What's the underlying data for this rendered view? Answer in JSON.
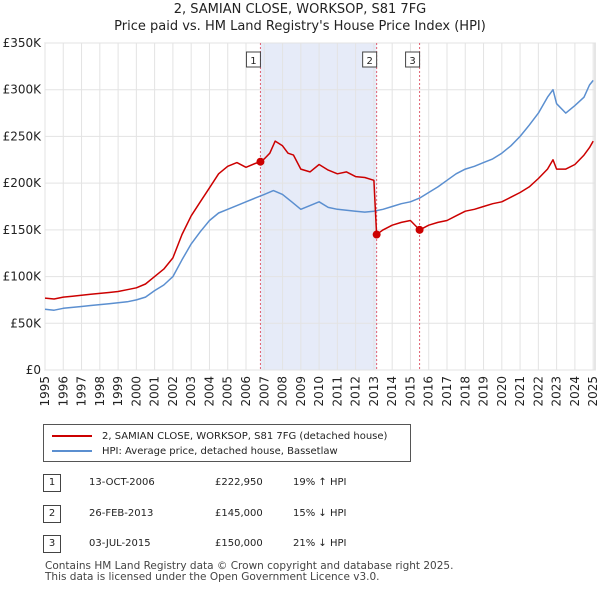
{
  "chart_data": {
    "type": "line",
    "title": "2, SAMIAN CLOSE, WORKSOP, S81 7FG",
    "subtitle": "Price paid vs. HM Land Registry's House Price Index (HPI)",
    "xlim": [
      1995,
      2025.1
    ],
    "ylim": [
      0,
      350000
    ],
    "y_ticks": [
      0,
      50000,
      100000,
      150000,
      200000,
      250000,
      300000,
      350000
    ],
    "y_tick_labels": [
      "£0",
      "£50K",
      "£100K",
      "£150K",
      "£200K",
      "£250K",
      "£300K",
      "£350K"
    ],
    "x_tick_labels": [
      "1995",
      "1996",
      "1997",
      "1998",
      "1999",
      "2000",
      "2001",
      "2002",
      "2003",
      "2004",
      "2005",
      "2006",
      "2007",
      "2008",
      "2009",
      "2010",
      "2011",
      "2012",
      "2013",
      "2014",
      "2015",
      "2016",
      "2017",
      "2018",
      "2019",
      "2020",
      "2021",
      "2022",
      "2023",
      "2024",
      "2025"
    ],
    "series": [
      {
        "name": "2, SAMIAN CLOSE, WORKSOP, S81 7FG (detached house)",
        "color": "#cc0000",
        "x": [
          1995.0,
          1995.5,
          1996.0,
          1996.5,
          1997.0,
          1997.5,
          1998.0,
          1998.5,
          1999.0,
          1999.5,
          2000.0,
          2000.5,
          2001.0,
          2001.5,
          2002.0,
          2002.5,
          2003.0,
          2003.5,
          2004.0,
          2004.5,
          2005.0,
          2005.5,
          2006.0,
          2006.5,
          2006.79,
          2007.0,
          2007.3,
          2007.6,
          2008.0,
          2008.3,
          2008.6,
          2009.0,
          2009.5,
          2010.0,
          2010.5,
          2011.0,
          2011.5,
          2012.0,
          2012.5,
          2013.0,
          2013.15,
          2013.5,
          2014.0,
          2014.5,
          2015.0,
          2015.5,
          2016.0,
          2016.5,
          2017.0,
          2017.5,
          2018.0,
          2018.5,
          2019.0,
          2019.5,
          2020.0,
          2020.5,
          2021.0,
          2021.5,
          2022.0,
          2022.5,
          2022.8,
          2023.0,
          2023.5,
          2024.0,
          2024.5,
          2024.8,
          2025.0
        ],
        "y": [
          77000,
          76000,
          78000,
          79000,
          80000,
          81000,
          82000,
          83000,
          84000,
          86000,
          88000,
          92000,
          100000,
          108000,
          120000,
          145000,
          165000,
          180000,
          195000,
          210000,
          218000,
          222000,
          217000,
          221000,
          222950,
          226000,
          232000,
          245000,
          240000,
          232000,
          230000,
          215000,
          212000,
          220000,
          214000,
          210000,
          212000,
          207000,
          206000,
          203000,
          145000,
          150000,
          155000,
          158000,
          160000,
          150000,
          155000,
          158000,
          160000,
          165000,
          170000,
          172000,
          175000,
          178000,
          180000,
          185000,
          190000,
          196000,
          205000,
          215000,
          225000,
          215000,
          215000,
          220000,
          230000,
          238000,
          245000
        ]
      },
      {
        "name": "HPI: Average price, detached house, Bassetlaw",
        "color": "#5b8fd0",
        "x": [
          1995.0,
          1995.5,
          1996.0,
          1996.5,
          1997.0,
          1997.5,
          1998.0,
          1998.5,
          1999.0,
          1999.5,
          2000.0,
          2000.5,
          2001.0,
          2001.5,
          2002.0,
          2002.5,
          2003.0,
          2003.5,
          2004.0,
          2004.5,
          2005.0,
          2005.5,
          2006.0,
          2006.5,
          2007.0,
          2007.5,
          2008.0,
          2008.5,
          2009.0,
          2009.5,
          2010.0,
          2010.5,
          2011.0,
          2011.5,
          2012.0,
          2012.5,
          2013.0,
          2013.5,
          2014.0,
          2014.5,
          2015.0,
          2015.5,
          2016.0,
          2016.5,
          2017.0,
          2017.5,
          2018.0,
          2018.5,
          2019.0,
          2019.5,
          2020.0,
          2020.5,
          2021.0,
          2021.5,
          2022.0,
          2022.5,
          2022.8,
          2023.0,
          2023.5,
          2024.0,
          2024.5,
          2024.8,
          2025.0
        ],
        "y": [
          65000,
          64000,
          66000,
          67000,
          68000,
          69000,
          70000,
          71000,
          72000,
          73000,
          75000,
          78000,
          85000,
          91000,
          100000,
          118000,
          135000,
          148000,
          160000,
          168000,
          172000,
          176000,
          180000,
          184000,
          188000,
          192000,
          188000,
          180000,
          172000,
          176000,
          180000,
          174000,
          172000,
          171000,
          170000,
          169000,
          170000,
          172000,
          175000,
          178000,
          180000,
          184000,
          190000,
          196000,
          203000,
          210000,
          215000,
          218000,
          222000,
          226000,
          232000,
          240000,
          250000,
          262000,
          275000,
          292000,
          300000,
          285000,
          275000,
          283000,
          292000,
          305000,
          310000
        ]
      }
    ],
    "annotations": [
      {
        "label": "1",
        "x": 2006.79,
        "y": 222950
      },
      {
        "label": "2",
        "x": 2013.15,
        "y": 145000
      },
      {
        "label": "3",
        "x": 2015.5,
        "y": 150000
      }
    ],
    "shaded_regions": [
      [
        2006.79,
        2013.15
      ]
    ],
    "legend": "below"
  },
  "legend": {
    "items": [
      {
        "label": "2, SAMIAN CLOSE, WORKSOP, S81 7FG (detached house)",
        "color": "#cc0000"
      },
      {
        "label": "HPI: Average price, detached house, Bassetlaw",
        "color": "#5b8fd0"
      }
    ]
  },
  "sales": [
    {
      "num": "1",
      "date": "13-OCT-2006",
      "price": "£222,950",
      "hpi": "19% ↑ HPI"
    },
    {
      "num": "2",
      "date": "26-FEB-2013",
      "price": "£145,000",
      "hpi": "15% ↓ HPI"
    },
    {
      "num": "3",
      "date": "03-JUL-2015",
      "price": "£150,000",
      "hpi": "21% ↓ HPI"
    }
  ],
  "footer": {
    "line1": "Contains HM Land Registry data © Crown copyright and database right 2025.",
    "line2": "This data is licensed under the Open Government Licence v3.0."
  }
}
